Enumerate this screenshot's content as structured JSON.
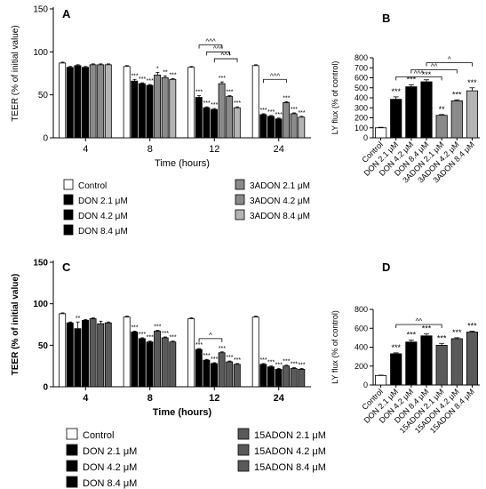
{
  "colors": {
    "white": "#ffffff",
    "black": "#000000",
    "gray_dark": "#5a5a5a",
    "gray_mid": "#8a8a8a",
    "gray_light": "#b4b4b4"
  },
  "chart_data": [
    {
      "id": "A",
      "panel_label": "A",
      "type": "bar",
      "xlabel": "Time (hours)",
      "ylabel": "TEER (% of initial value)",
      "ylim": [
        0,
        150
      ],
      "yticks": [
        "0",
        "50",
        "100",
        "150"
      ],
      "categories": [
        "4",
        "8",
        "12",
        "24"
      ],
      "series": [
        {
          "name": "Control",
          "fill": "white",
          "values": [
            87,
            83,
            82,
            84
          ],
          "errors": [
            1,
            1,
            1,
            1
          ]
        },
        {
          "name": "DON 2.1 μM",
          "fill": "black",
          "values": [
            82,
            66,
            47,
            27
          ],
          "errors": [
            1,
            2,
            2,
            1
          ]
        },
        {
          "name": "DON 4.2 μM",
          "fill": "black",
          "values": [
            84,
            63,
            35,
            25
          ],
          "errors": [
            1,
            1,
            1,
            1
          ]
        },
        {
          "name": "DON 8.4 μM",
          "fill": "black",
          "values": [
            82,
            61,
            33,
            22
          ],
          "errors": [
            1,
            1,
            1,
            1
          ]
        },
        {
          "name": "3ADON 2.1 μM",
          "fill": "gray_mid",
          "values": [
            85,
            73,
            63,
            41
          ],
          "errors": [
            1,
            3,
            2,
            1
          ]
        },
        {
          "name": "3ADON 4.2 μM",
          "fill": "gray_mid",
          "values": [
            85,
            70,
            48,
            28
          ],
          "errors": [
            1,
            2,
            1,
            1
          ]
        },
        {
          "name": "3ADON 8.4 μM",
          "fill": "gray_light",
          "values": [
            85,
            68,
            35,
            24
          ],
          "errors": [
            1,
            1,
            1,
            1
          ]
        }
      ],
      "sig": [
        [
          "",
          "",
          "",
          "",
          "",
          "",
          ""
        ],
        [
          "",
          "***",
          "***",
          "***",
          "*",
          "**",
          "***"
        ],
        [
          "",
          "***",
          "***",
          "***",
          "***",
          "***",
          "***"
        ],
        [
          "",
          "***",
          "***",
          "***",
          "***",
          "***",
          "***"
        ]
      ],
      "brackets": [
        {
          "cat": 2,
          "from": 1,
          "to": 4,
          "y": 108,
          "label": "^^^"
        },
        {
          "cat": 2,
          "from": 2,
          "to": 5,
          "y": 100,
          "label": "^^^"
        },
        {
          "cat": 2,
          "from": 3,
          "to": 6,
          "y": 92,
          "label": "^^^"
        },
        {
          "cat": 3,
          "from": 1,
          "to": 4,
          "y": 68,
          "label": "^^^"
        }
      ]
    },
    {
      "id": "B",
      "panel_label": "B",
      "type": "bar",
      "ylabel": "LY flux (% of control)",
      "ylim": [
        0,
        800
      ],
      "yticks": [
        "0",
        "100",
        "200",
        "300",
        "400",
        "500",
        "600",
        "700",
        "800"
      ],
      "categories": [
        "Control",
        "DON 2.1 μM",
        "DON 4.2 μM",
        "DON 8.4 μM",
        "3ADON 2.1 μM",
        "3ADON 4.2 μM",
        "3ADON 8.4 μM"
      ],
      "fills": [
        "white",
        "black",
        "black",
        "black",
        "gray_mid",
        "gray_mid",
        "gray_light"
      ],
      "values": [
        100,
        385,
        510,
        560,
        225,
        370,
        470
      ],
      "errors": [
        5,
        25,
        20,
        20,
        8,
        10,
        30
      ],
      "sig": [
        "",
        "***",
        "***",
        "***",
        "**",
        "***",
        "***"
      ],
      "brackets": [
        {
          "from": 1,
          "to": 4,
          "y": 610,
          "label": "^^^"
        },
        {
          "from": 2,
          "to": 5,
          "y": 680,
          "label": "^^"
        },
        {
          "from": 3,
          "to": 6,
          "y": 750,
          "label": "^"
        }
      ]
    },
    {
      "id": "C",
      "panel_label": "C",
      "type": "bar",
      "xlabel": "Time (hours)",
      "ylabel": "TEER (% of initial value)",
      "ylim": [
        0,
        150
      ],
      "yticks": [
        "0",
        "50",
        "100",
        "150"
      ],
      "categories": [
        "4",
        "8",
        "12",
        "24"
      ],
      "series": [
        {
          "name": "Control",
          "fill": "white",
          "values": [
            88,
            84,
            82,
            84
          ],
          "errors": [
            1,
            1,
            1,
            1
          ]
        },
        {
          "name": "DON 2.1 μM",
          "fill": "black",
          "values": [
            77,
            66,
            45,
            27
          ],
          "errors": [
            1,
            1,
            1,
            1
          ]
        },
        {
          "name": "DON 4.2 μM",
          "fill": "black",
          "values": [
            70,
            58,
            32,
            24
          ],
          "errors": [
            8,
            1,
            1,
            1
          ]
        },
        {
          "name": "DON 8.4 μM",
          "fill": "black",
          "values": [
            80,
            54,
            28,
            21
          ],
          "errors": [
            1,
            1,
            1,
            1
          ]
        },
        {
          "name": "15ADON 2.1 μM",
          "fill": "gray_dark",
          "values": [
            82,
            67,
            41,
            25
          ],
          "errors": [
            1,
            1,
            1,
            1
          ]
        },
        {
          "name": "15ADON 4.2 μM",
          "fill": "gray_dark",
          "values": [
            76,
            59,
            30,
            22
          ],
          "errors": [
            3,
            1,
            1,
            1
          ]
        },
        {
          "name": "15ADON 8.4 μM",
          "fill": "gray_dark",
          "values": [
            77,
            54,
            27,
            21
          ],
          "errors": [
            1,
            1,
            1,
            1
          ]
        }
      ],
      "sig": [
        [
          "",
          "",
          "**",
          "",
          "",
          "",
          ""
        ],
        [
          "",
          "***",
          "***",
          "***",
          "***",
          "***",
          "***"
        ],
        [
          "",
          "***",
          "***",
          "***",
          "***",
          "***",
          "***"
        ],
        [
          "",
          "***",
          "***",
          "***",
          "***",
          "***",
          "***"
        ]
      ],
      "brackets": [
        {
          "cat": 2,
          "from": 1,
          "to": 4,
          "y": 58,
          "label": "^"
        }
      ]
    },
    {
      "id": "D",
      "panel_label": "D",
      "type": "bar",
      "ylabel": "LY flux (% of control)",
      "ylim": [
        0,
        800
      ],
      "yticks": [
        "0",
        "200",
        "400",
        "600",
        "800"
      ],
      "categories": [
        "Control",
        "DON 2.1 μM",
        "DON 4.2 μM",
        "DON 8.4 μM",
        "15ADON 2.1 μM",
        "15ADON 4.2 μM",
        "15ADON 8.4 μM"
      ],
      "fills": [
        "white",
        "black",
        "black",
        "black",
        "gray_dark",
        "gray_dark",
        "gray_dark"
      ],
      "values": [
        100,
        330,
        455,
        520,
        420,
        490,
        560
      ],
      "errors": [
        4,
        10,
        20,
        20,
        20,
        10,
        10
      ],
      "sig": [
        "",
        "***",
        "***",
        "***",
        "***",
        "***",
        "***"
      ],
      "brackets": [
        {
          "from": 1,
          "to": 4,
          "y": 640,
          "label": "^^"
        }
      ]
    }
  ]
}
